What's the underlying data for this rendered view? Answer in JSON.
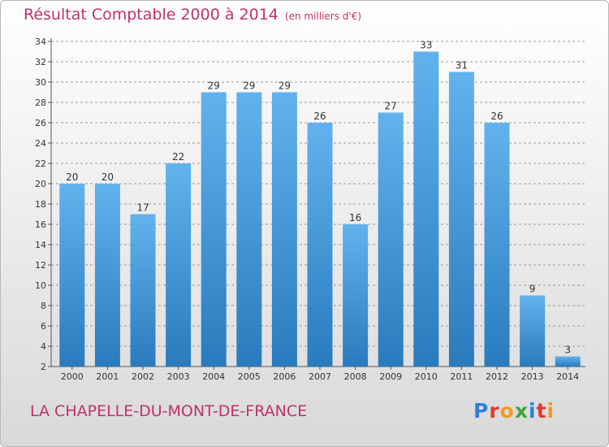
{
  "header": {
    "title": "Résultat Comptable 2000 à 2014",
    "unit_note": "(en milliers d'€)"
  },
  "footer": {
    "commune": "LA CHAPELLE-DU-MONT-DE-FRANCE"
  },
  "logo": {
    "text": "Proxiti",
    "letters": [
      {
        "char": "P",
        "color": "#2f7fd1"
      },
      {
        "char": "r",
        "color": "#e0392f"
      },
      {
        "char": "o",
        "color": "#f29a1f"
      },
      {
        "char": "x",
        "color": "#3aa83a"
      },
      {
        "char": "i",
        "color": "#2f7fd1"
      },
      {
        "char": "t",
        "color": "#e0392f"
      },
      {
        "char": "i",
        "color": "#f29a1f"
      }
    ]
  },
  "colors": {
    "title": "#c0306c",
    "bar_top": "#62b2ee",
    "bar_bottom": "#2a7bbd",
    "grid": "#9a9a9a"
  },
  "chart_data": {
    "type": "bar",
    "title": "Résultat Comptable 2000 à 2014",
    "subtitle": "(en milliers d'€)",
    "categories": [
      "2000",
      "2001",
      "2002",
      "2003",
      "2004",
      "2005",
      "2006",
      "2007",
      "2008",
      "2009",
      "2010",
      "2011",
      "2012",
      "2013",
      "2014"
    ],
    "values": [
      20,
      20,
      17,
      22,
      29,
      29,
      29,
      26,
      16,
      27,
      33,
      31,
      26,
      9,
      3
    ],
    "ylim": [
      2,
      34
    ],
    "yticks": [
      2,
      4,
      6,
      8,
      10,
      12,
      14,
      16,
      18,
      20,
      22,
      24,
      26,
      28,
      30,
      32,
      34
    ],
    "grid": "dashed horizontal",
    "legend": "none"
  }
}
